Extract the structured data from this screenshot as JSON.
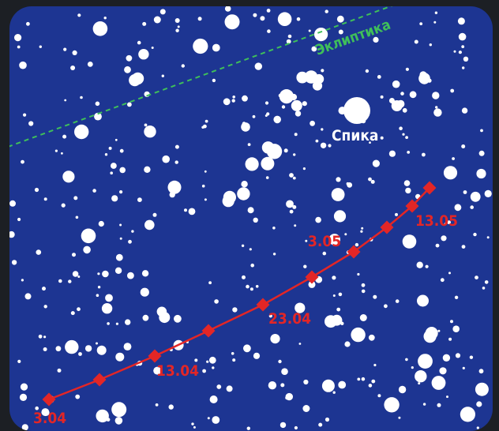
{
  "colors": {
    "sky": "#1d3592",
    "frame": "#1c1f24",
    "star": "#ffffff",
    "track": "#e32626",
    "ecliptic": "#3fbf5a"
  },
  "labels": {
    "ecliptic": "Эклиптика",
    "spica": "Спика"
  },
  "track": {
    "dates": [
      "3.04",
      "13.04",
      "23.04",
      "3.05",
      "13.05"
    ]
  }
}
